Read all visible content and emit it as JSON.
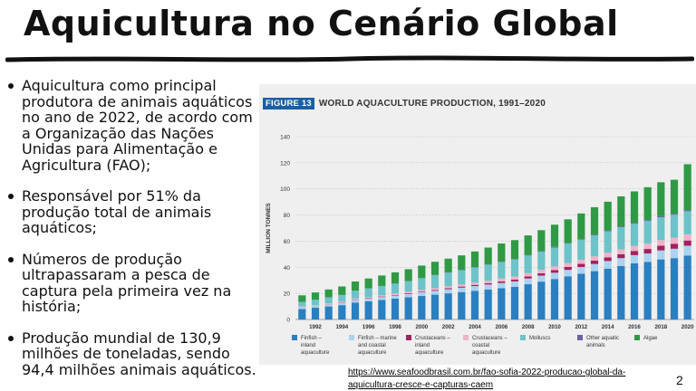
{
  "slide": {
    "title": "Aquicultura no Cenário Global",
    "bullets": [
      "Aquicultura como principal produtora de animais aquáticos no ano de 2022, de acordo com a Organização das Nações Unidas para Alimentação e Agricultura (FAO);",
      "Responsável por 51% da produção total de animais aquáticos;",
      "Números de produção ultrapassaram a pesca de captura pela primeira vez na história;",
      "Produção mundial de 130,9 milhões de toneladas, sendo 94,4 milhões animais aquáticos."
    ],
    "source_link": "https://www.seafoodbrasil.com.br/fao-sofia-2022-producao-global-da-aquicultura-cresce-e-capturas-caem",
    "page_number": "2"
  },
  "chart_data": {
    "type": "bar",
    "stacked": true,
    "figure_label": "FIGURE 13",
    "title": "WORLD AQUACULTURE PRODUCTION, 1991–2020",
    "ylabel": "MILLION TONNES",
    "xlabel": "",
    "ylim": [
      0,
      140
    ],
    "yticks": [
      0,
      20,
      40,
      60,
      80,
      100,
      120,
      140
    ],
    "grid": true,
    "legend_position": "bottom",
    "categories": [
      1991,
      1992,
      1993,
      1994,
      1995,
      1996,
      1997,
      1998,
      1999,
      2000,
      2001,
      2002,
      2003,
      2004,
      2005,
      2006,
      2007,
      2008,
      2009,
      2010,
      2011,
      2012,
      2013,
      2014,
      2015,
      2016,
      2017,
      2018,
      2019,
      2020
    ],
    "xtick_labels": [
      "1992",
      "1994",
      "1996",
      "1998",
      "2000",
      "2002",
      "2004",
      "2006",
      "2008",
      "2010",
      "2012",
      "2014",
      "2016",
      "2018",
      "2020"
    ],
    "series": [
      {
        "name": "Finfish – inland aquaculture",
        "color": "#2a7fc1",
        "values": [
          8,
          9,
          10,
          11,
          13,
          14,
          15,
          16,
          17,
          18,
          19,
          20,
          21,
          22,
          23,
          24,
          25,
          27,
          29,
          31,
          33,
          35,
          37,
          39,
          41,
          43,
          44,
          46,
          47,
          49
        ]
      },
      {
        "name": "Finfish – marine and coastal aquaculture",
        "color": "#a9d3ef",
        "values": [
          1,
          1.2,
          1.4,
          1.6,
          1.8,
          2,
          2.2,
          2.4,
          2.6,
          2.8,
          3,
          3.2,
          3.4,
          3.6,
          3.8,
          4,
          4.2,
          4.4,
          4.6,
          4.8,
          5,
          5.2,
          5.5,
          5.8,
          6,
          6.3,
          6.6,
          6.9,
          7.2,
          7.5
        ]
      },
      {
        "name": "Crustaceans – inland aquaculture",
        "color": "#a3215e",
        "values": [
          0.1,
          0.1,
          0.2,
          0.2,
          0.3,
          0.3,
          0.4,
          0.4,
          0.5,
          0.5,
          0.6,
          0.7,
          0.8,
          0.9,
          1,
          1.2,
          1.4,
          1.6,
          1.8,
          2,
          2.2,
          2.4,
          2.6,
          2.8,
          3,
          3.2,
          3.4,
          3.6,
          3.8,
          4
        ]
      },
      {
        "name": "Crustaceans – coastal aquaculture",
        "color": "#f0b3c8",
        "values": [
          0.8,
          0.8,
          0.8,
          0.9,
          0.9,
          1,
          1,
          1.1,
          1.2,
          1.3,
          1.4,
          1.5,
          1.6,
          1.8,
          2,
          2.2,
          2.3,
          2.5,
          2.6,
          2.8,
          3,
          3.1,
          3.3,
          3.5,
          3.7,
          3.9,
          4.1,
          4.3,
          4.5,
          4.7
        ]
      },
      {
        "name": "Molluscs",
        "color": "#6cc3c9",
        "values": [
          3.5,
          4,
          4.5,
          5,
          6,
          6.5,
          7,
          7.5,
          8,
          9,
          10,
          10.5,
          11,
          11.5,
          12,
          12.5,
          13,
          13.5,
          14,
          14.5,
          15,
          15.5,
          16,
          16.5,
          17,
          17,
          17.5,
          17.5,
          17.7,
          17.7
        ]
      },
      {
        "name": "Other aquatic animals",
        "color": "#6b62a8",
        "values": [
          0.1,
          0.1,
          0.1,
          0.1,
          0.1,
          0.1,
          0.1,
          0.2,
          0.2,
          0.2,
          0.2,
          0.2,
          0.3,
          0.3,
          0.3,
          0.3,
          0.4,
          0.4,
          0.4,
          0.5,
          0.5,
          0.5,
          0.6,
          0.6,
          0.6,
          0.7,
          0.7,
          0.8,
          0.8,
          0.9
        ]
      },
      {
        "name": "Algae",
        "color": "#2f9a45",
        "values": [
          5,
          5.5,
          6,
          6.5,
          7,
          7.5,
          8,
          8.5,
          9,
          9.5,
          10,
          10.5,
          11,
          12,
          13,
          14,
          14.5,
          15,
          16,
          17,
          18,
          19.5,
          21,
          22,
          23,
          24,
          25,
          26,
          26,
          35.1
        ]
      }
    ],
    "legend_labels": [
      [
        "Finfish –",
        "inland",
        "aquaculture"
      ],
      [
        "Finfish – marine",
        "and coastal",
        "aquaculture"
      ],
      [
        "Crustaceans –",
        "inland",
        "aquaculture"
      ],
      [
        "Crustaceans –",
        "coastal",
        "aquaculture"
      ],
      [
        "Molluscs"
      ],
      [
        "Other aquatic",
        "animals"
      ],
      [
        "Algae"
      ]
    ]
  }
}
